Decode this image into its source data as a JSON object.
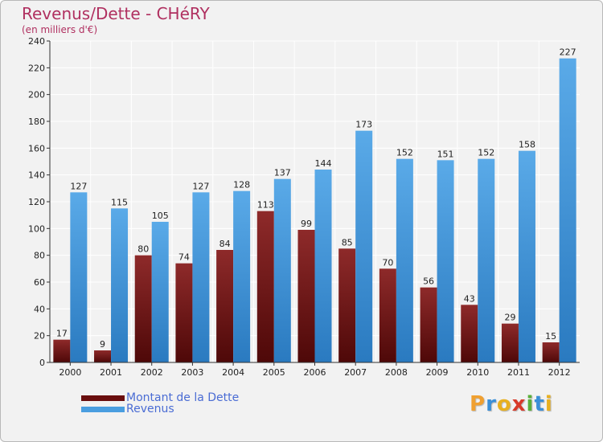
{
  "chart_data": {
    "type": "bar",
    "title": "Revenus/Dette - CHéRY",
    "subtitle": "(en milliers d'€)",
    "categories": [
      "2000",
      "2001",
      "2002",
      "2003",
      "2004",
      "2005",
      "2006",
      "2007",
      "2008",
      "2009",
      "2010",
      "2011",
      "2012"
    ],
    "series": [
      {
        "name": "Montant de la Dette",
        "color": "#7a1a1a",
        "values": [
          17,
          9,
          80,
          74,
          84,
          113,
          99,
          85,
          70,
          56,
          43,
          29,
          15
        ]
      },
      {
        "name": "Revenus",
        "color": "#4a9ee0",
        "values": [
          127,
          115,
          105,
          127,
          128,
          137,
          144,
          173,
          152,
          151,
          152,
          158,
          227
        ]
      }
    ],
    "ylim": [
      0,
      240
    ],
    "yticks": [
      0,
      20,
      40,
      60,
      80,
      100,
      120,
      140,
      160,
      180,
      200,
      220,
      240
    ],
    "grid": true,
    "legend": "bottom-left"
  },
  "brand": {
    "letters": [
      {
        "ch": "P",
        "color": "#f0a030"
      },
      {
        "ch": "r",
        "color": "#3a8fd8"
      },
      {
        "ch": "o",
        "color": "#e8b020"
      },
      {
        "ch": "x",
        "color": "#d83a2a"
      },
      {
        "ch": "i",
        "color": "#5ab03a"
      },
      {
        "ch": "t",
        "color": "#3a8fd8"
      },
      {
        "ch": "i",
        "color": "#e8b020"
      }
    ]
  }
}
